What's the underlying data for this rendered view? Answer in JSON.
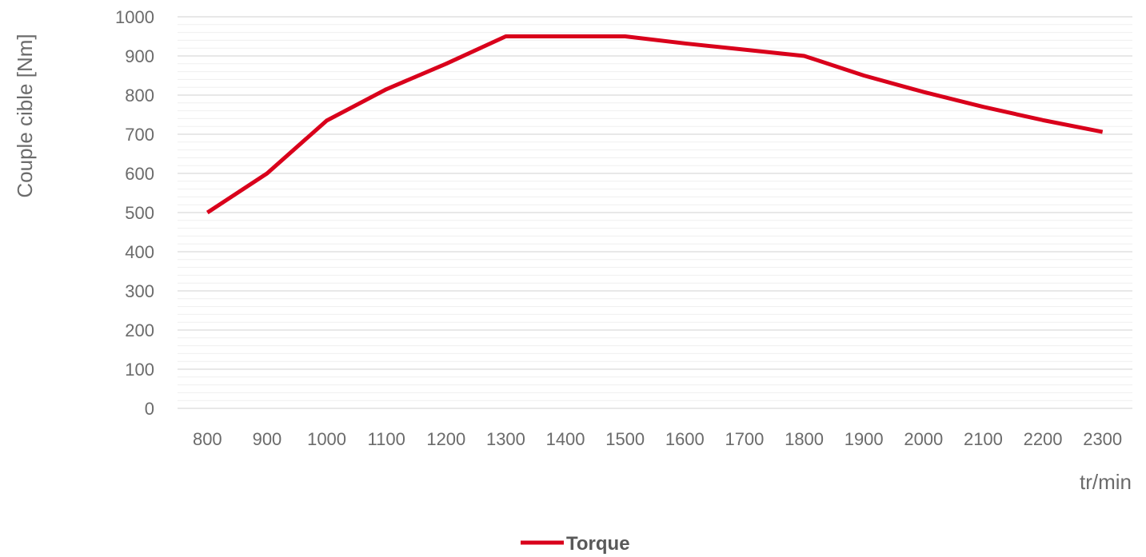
{
  "chart_data": {
    "type": "line",
    "title": "",
    "xlabel": "tr/min",
    "ylabel": "Couple cible [Nm]",
    "categories": [
      "800",
      "900",
      "1000",
      "1100",
      "1200",
      "1300",
      "1400",
      "1500",
      "1600",
      "1700",
      "1800",
      "1900",
      "2000",
      "2100",
      "2200",
      "2300"
    ],
    "series": [
      {
        "name": "Torque",
        "color": "#d9001b",
        "values": [
          500,
          600,
          735,
          815,
          880,
          950,
          950,
          950,
          932,
          916,
          900,
          850,
          808,
          770,
          736,
          706
        ]
      }
    ],
    "ylim": [
      0,
      1000
    ],
    "yticks": [
      "0",
      "100",
      "200",
      "300",
      "400",
      "500",
      "600",
      "700",
      "800",
      "900",
      "1000"
    ],
    "grid": true,
    "minor_grid": true,
    "legend_position": "bottom-center"
  }
}
